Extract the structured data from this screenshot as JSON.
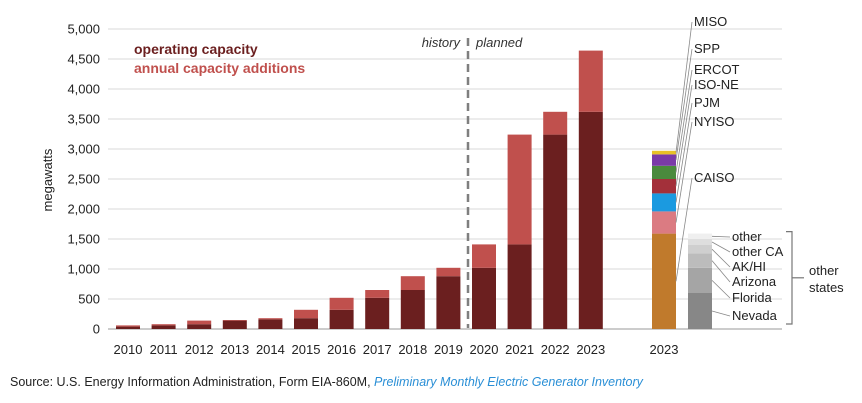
{
  "chart_data": {
    "type": "bar",
    "ylabel": "megawatts",
    "ylim": [
      0,
      5000
    ],
    "yticks": [
      0,
      500,
      1000,
      1500,
      2000,
      2500,
      3000,
      3500,
      4000,
      4500,
      5000
    ],
    "ytick_labels": [
      "0",
      "500",
      "1,000",
      "1,500",
      "2,000",
      "2,500",
      "3,000",
      "3,500",
      "4,000",
      "4,500",
      "5,000"
    ],
    "categories": [
      "2010",
      "2011",
      "2012",
      "2013",
      "2014",
      "2015",
      "2016",
      "2017",
      "2018",
      "2019",
      "2020",
      "2021",
      "2022",
      "2023"
    ],
    "series": [
      {
        "name": "operating capacity",
        "color": "#6b1f1f",
        "values": [
          40,
          60,
          80,
          140,
          160,
          180,
          320,
          520,
          650,
          880,
          1020,
          1410,
          3240,
          3620
        ]
      },
      {
        "name": "annual capacity additions",
        "color": "#c0504d",
        "values": [
          20,
          20,
          60,
          10,
          20,
          140,
          200,
          130,
          230,
          140,
          390,
          1830,
          380,
          1020
        ]
      }
    ],
    "legend_position": "top-left",
    "annotations": {
      "history": "history",
      "planned": "planned"
    },
    "breakdown_label": "2023",
    "iso_breakdown": [
      {
        "name": "CAISO",
        "value": 1590,
        "color": "#c07a2c"
      },
      {
        "name": "NYISO",
        "value": 370,
        "color": "#db7b82"
      },
      {
        "name": "PJM",
        "value": 300,
        "color": "#1b9ae0"
      },
      {
        "name": "ISO-NE",
        "value": 240,
        "color": "#a3303a"
      },
      {
        "name": "ERCOT",
        "value": 220,
        "color": "#4a8a3d"
      },
      {
        "name": "SPP",
        "value": 190,
        "color": "#7a3aa8"
      },
      {
        "name": "MISO",
        "value": 60,
        "color": "#e8c227"
      }
    ],
    "iso_base": {
      "value": 1590,
      "color": "#a6a6a6"
    },
    "state_breakdown": [
      {
        "name": "Nevada",
        "value": 600,
        "color": "#878787"
      },
      {
        "name": "Florida",
        "value": 420,
        "color": "#a5a5a5"
      },
      {
        "name": "Arizona",
        "value": 240,
        "color": "#bcbcbc"
      },
      {
        "name": "AK/HI",
        "value": 140,
        "color": "#cfcfcf"
      },
      {
        "name": "other CA",
        "value": 100,
        "color": "#dedede"
      },
      {
        "name": "other",
        "value": 90,
        "color": "#efefef"
      }
    ],
    "state_group_label_lines": [
      "other",
      "states"
    ]
  },
  "source": {
    "prefix": "Source: U.S. Energy Information Administration, Form EIA-860M, ",
    "publication": "Preliminary Monthly Electric Generator Inventory"
  }
}
